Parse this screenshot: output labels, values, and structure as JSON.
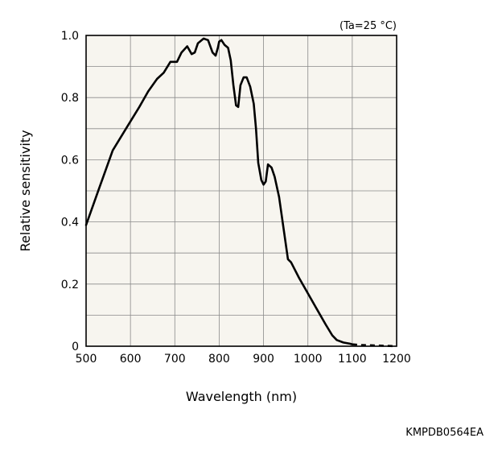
{
  "chart_data": {
    "type": "line",
    "title": "",
    "condition_note": "(Ta=25 °C)",
    "xlabel": "Wavelength (nm)",
    "ylabel": "Relative sensitivity",
    "footer_code": "KMPDB0564EA",
    "xlim": [
      500,
      1200
    ],
    "ylim": [
      0,
      1.0
    ],
    "x_ticks": [
      500,
      600,
      700,
      800,
      900,
      1000,
      1100,
      1200
    ],
    "x_tick_labels": [
      "500",
      "600",
      "700",
      "800",
      "900",
      "1000",
      "1100",
      "1200"
    ],
    "y_ticks": [
      0,
      0.2,
      0.4,
      0.6,
      0.8,
      1.0
    ],
    "y_tick_labels": [
      "0",
      "0.2",
      "0.4",
      "0.6",
      "0.8",
      "1.0"
    ],
    "grid": true,
    "plot_background": "#f7f5ef",
    "line_color": "#000000",
    "series": [
      {
        "style": "solid",
        "points": [
          [
            500,
            0.39
          ],
          [
            530,
            0.51
          ],
          [
            560,
            0.63
          ],
          [
            590,
            0.7
          ],
          [
            620,
            0.77
          ],
          [
            640,
            0.82
          ],
          [
            660,
            0.86
          ],
          [
            675,
            0.88
          ],
          [
            690,
            0.915
          ],
          [
            705,
            0.915
          ],
          [
            715,
            0.945
          ],
          [
            728,
            0.965
          ],
          [
            738,
            0.94
          ],
          [
            745,
            0.945
          ],
          [
            752,
            0.975
          ],
          [
            765,
            0.99
          ],
          [
            775,
            0.985
          ],
          [
            785,
            0.945
          ],
          [
            792,
            0.935
          ],
          [
            797,
            0.96
          ],
          [
            800,
            0.98
          ],
          [
            805,
            0.985
          ],
          [
            812,
            0.97
          ],
          [
            820,
            0.96
          ],
          [
            826,
            0.92
          ],
          [
            832,
            0.84
          ],
          [
            838,
            0.775
          ],
          [
            843,
            0.77
          ],
          [
            848,
            0.84
          ],
          [
            855,
            0.865
          ],
          [
            862,
            0.865
          ],
          [
            870,
            0.835
          ],
          [
            878,
            0.78
          ],
          [
            883,
            0.7
          ],
          [
            888,
            0.59
          ],
          [
            895,
            0.535
          ],
          [
            900,
            0.52
          ],
          [
            905,
            0.53
          ],
          [
            910,
            0.585
          ],
          [
            918,
            0.575
          ],
          [
            925,
            0.545
          ],
          [
            935,
            0.48
          ],
          [
            945,
            0.38
          ],
          [
            955,
            0.28
          ],
          [
            962,
            0.27
          ],
          [
            980,
            0.22
          ],
          [
            1000,
            0.17
          ],
          [
            1020,
            0.12
          ],
          [
            1040,
            0.07
          ],
          [
            1055,
            0.035
          ],
          [
            1065,
            0.02
          ],
          [
            1080,
            0.012
          ],
          [
            1095,
            0.008
          ],
          [
            1100,
            0.006
          ]
        ]
      },
      {
        "style": "dashed",
        "points": [
          [
            1100,
            0.006
          ],
          [
            1120,
            0.004
          ],
          [
            1140,
            0.003
          ],
          [
            1160,
            0.002
          ],
          [
            1180,
            0.001
          ],
          [
            1200,
            0.0
          ]
        ]
      }
    ]
  }
}
